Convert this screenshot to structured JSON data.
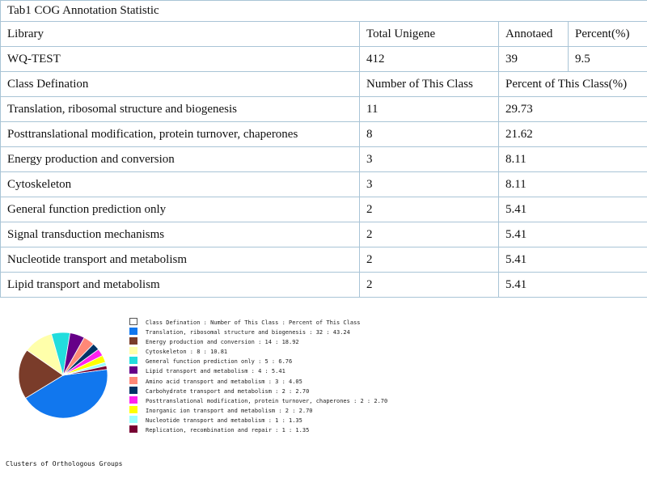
{
  "table": {
    "caption": "Tab1 COG Annotation Statistic",
    "summary_header": [
      "Library",
      "Total Unigene",
      "Annotaed",
      "Percent(%)"
    ],
    "summary_row": [
      "WQ-TEST",
      "412",
      "39",
      "9.5"
    ],
    "class_header": [
      "Class Defination",
      "Number of This Class",
      "Percent of This Class(%)"
    ],
    "class_rows": [
      [
        "Translation, ribosomal structure and biogenesis",
        "11",
        "29.73"
      ],
      [
        "Posttranslational modification, protein turnover, chaperones",
        "8",
        "21.62"
      ],
      [
        "Energy production and conversion",
        "3",
        "8.11"
      ],
      [
        "Cytoskeleton",
        "3",
        "8.11"
      ],
      [
        "General function prediction only",
        "2",
        "5.41"
      ],
      [
        "Signal transduction mechanisms",
        "2",
        "5.41"
      ],
      [
        "Nucleotide transport and metabolism",
        "2",
        "5.41"
      ],
      [
        "Lipid transport and metabolism",
        "2",
        "5.41"
      ]
    ]
  },
  "chart_data": {
    "type": "pie",
    "title": "Clusters of Orthologous Groups",
    "legend_header": "Class Defination : Number of This Class : Percent of This Class",
    "legend_header_color": "#ffffff",
    "legend_placement": "right",
    "slices": [
      {
        "label": "Translation, ribosomal structure and biogenesis",
        "count": 32,
        "percent": 43.24,
        "color": "#1177ee"
      },
      {
        "label": "Energy production and conversion",
        "count": 14,
        "percent": 18.92,
        "color": "#7a3c2a"
      },
      {
        "label": "Cytoskeleton",
        "count": 8,
        "percent": 10.81,
        "color": "#ffffaa"
      },
      {
        "label": "General function prediction only",
        "count": 5,
        "percent": 6.76,
        "color": "#22dddd"
      },
      {
        "label": "Lipid transport and metabolism",
        "count": 4,
        "percent": 5.41,
        "color": "#660088"
      },
      {
        "label": "Amino acid transport and metabolism",
        "count": 3,
        "percent": 4.05,
        "color": "#ff8877"
      },
      {
        "label": "Carbohydrate transport and metabolism",
        "count": 2,
        "percent": 2.7,
        "color": "#003366"
      },
      {
        "label": "Posttranslational modification, protein turnover, chaperones",
        "count": 2,
        "percent": 2.7,
        "color": "#ff22ee"
      },
      {
        "label": "Inorganic ion transport and metabolism",
        "count": 2,
        "percent": 2.7,
        "color": "#ffff00"
      },
      {
        "label": "Nucleotide transport and metabolism",
        "count": 1,
        "percent": 1.35,
        "color": "#99ffff"
      },
      {
        "label": "Replication, recombination and repair",
        "count": 1,
        "percent": 1.35,
        "color": "#770033"
      }
    ]
  }
}
